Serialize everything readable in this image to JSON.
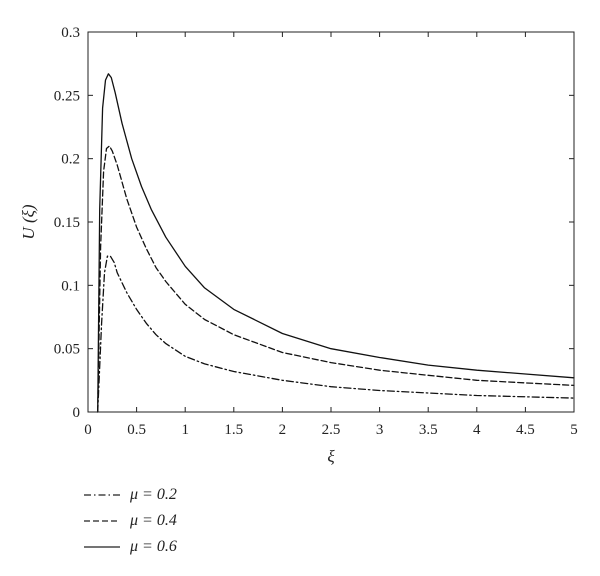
{
  "chart_data": {
    "type": "line",
    "xlabel": "ξ",
    "ylabel": "U (ξ)",
    "xlim": [
      0,
      5
    ],
    "ylim": [
      0,
      0.3
    ],
    "x_ticks": [
      "0",
      "0.5",
      "1",
      "1.5",
      "2",
      "2.5",
      "3",
      "3.5",
      "4",
      "4.5",
      "5"
    ],
    "y_ticks": [
      "0",
      "0.05",
      "0.1",
      "0.15",
      "0.2",
      "0.25",
      "0.3"
    ],
    "grid": false,
    "legend_position": "bottom-left",
    "series": [
      {
        "name": "μ = 0.2",
        "style": "dashdot",
        "x": [
          0.1,
          0.14,
          0.17,
          0.2,
          0.23,
          0.27,
          0.3,
          0.4,
          0.5,
          0.6,
          0.7,
          0.8,
          1.0,
          1.2,
          1.5,
          2.0,
          2.5,
          3.0,
          3.5,
          4.0,
          4.5,
          5.0
        ],
        "y": [
          0.0,
          0.07,
          0.11,
          0.123,
          0.123,
          0.118,
          0.11,
          0.094,
          0.081,
          0.07,
          0.061,
          0.054,
          0.044,
          0.038,
          0.032,
          0.025,
          0.02,
          0.017,
          0.015,
          0.013,
          0.012,
          0.011
        ]
      },
      {
        "name": "μ = 0.4",
        "style": "dashed",
        "x": [
          0.1,
          0.13,
          0.16,
          0.19,
          0.22,
          0.25,
          0.3,
          0.4,
          0.5,
          0.6,
          0.7,
          0.8,
          1.0,
          1.2,
          1.5,
          2.0,
          2.5,
          3.0,
          3.5,
          4.0,
          4.5,
          5.0
        ],
        "y": [
          0.0,
          0.13,
          0.19,
          0.208,
          0.21,
          0.206,
          0.195,
          0.168,
          0.146,
          0.129,
          0.114,
          0.103,
          0.085,
          0.073,
          0.061,
          0.047,
          0.039,
          0.033,
          0.029,
          0.025,
          0.023,
          0.021
        ]
      },
      {
        "name": "μ = 0.6",
        "style": "solid",
        "x": [
          0.1,
          0.12,
          0.15,
          0.18,
          0.21,
          0.24,
          0.28,
          0.35,
          0.45,
          0.55,
          0.65,
          0.8,
          1.0,
          1.2,
          1.5,
          2.0,
          2.5,
          3.0,
          3.5,
          4.0,
          4.5,
          5.0
        ],
        "y": [
          0.0,
          0.16,
          0.24,
          0.262,
          0.267,
          0.264,
          0.252,
          0.228,
          0.2,
          0.178,
          0.16,
          0.138,
          0.115,
          0.098,
          0.081,
          0.062,
          0.05,
          0.043,
          0.037,
          0.033,
          0.03,
          0.027
        ]
      }
    ]
  }
}
